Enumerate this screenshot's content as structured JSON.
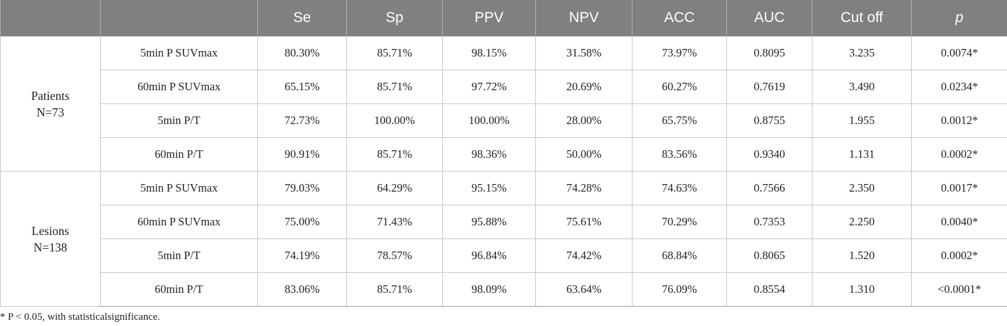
{
  "table": {
    "headers": [
      "",
      "",
      "Se",
      "Sp",
      "PPV",
      "NPV",
      "ACC",
      "AUC",
      "Cut off",
      "p"
    ],
    "groups": [
      {
        "label_line1": "Patients",
        "label_line2": "N=73",
        "rows": [
          [
            "5min P SUVmax",
            "80.30%",
            "85.71%",
            "98.15%",
            "31.58%",
            "73.97%",
            "0.8095",
            "3.235",
            "0.0074*"
          ],
          [
            "60min P SUVmax",
            "65.15%",
            "85.71%",
            "97.72%",
            "20.69%",
            "60.27%",
            "0.7619",
            "3.490",
            "0.0234*"
          ],
          [
            "5min P/T",
            "72.73%",
            "100.00%",
            "100.00%",
            "28.00%",
            "65.75%",
            "0.8755",
            "1.955",
            "0.0012*"
          ],
          [
            "60min P/T",
            "90.91%",
            "85.71%",
            "98.36%",
            "50.00%",
            "83.56%",
            "0.9340",
            "1.131",
            "0.0002*"
          ]
        ]
      },
      {
        "label_line1": "Lesions",
        "label_line2": "N=138",
        "rows": [
          [
            "5min P SUVmax",
            "79.03%",
            "64.29%",
            "95.15%",
            "74.28%",
            "74.63%",
            "0.7566",
            "2.350",
            "0.0017*"
          ],
          [
            "60min P SUVmax",
            "75.00%",
            "71.43%",
            "95.88%",
            "75.61%",
            "70.29%",
            "0.7353",
            "2.250",
            "0.0040*"
          ],
          [
            "5min P/T",
            "74.19%",
            "78.57%",
            "96.84%",
            "74.42%",
            "68.84%",
            "0.8065",
            "1.520",
            "0.0002*"
          ],
          [
            "60min P/T",
            "83.06%",
            "85.71%",
            "98.09%",
            "63.64%",
            "76.09%",
            "0.8554",
            "1.310",
            "<0.0001*"
          ]
        ]
      }
    ]
  },
  "footnote": "* P < 0.05, with statisticalsignificance."
}
